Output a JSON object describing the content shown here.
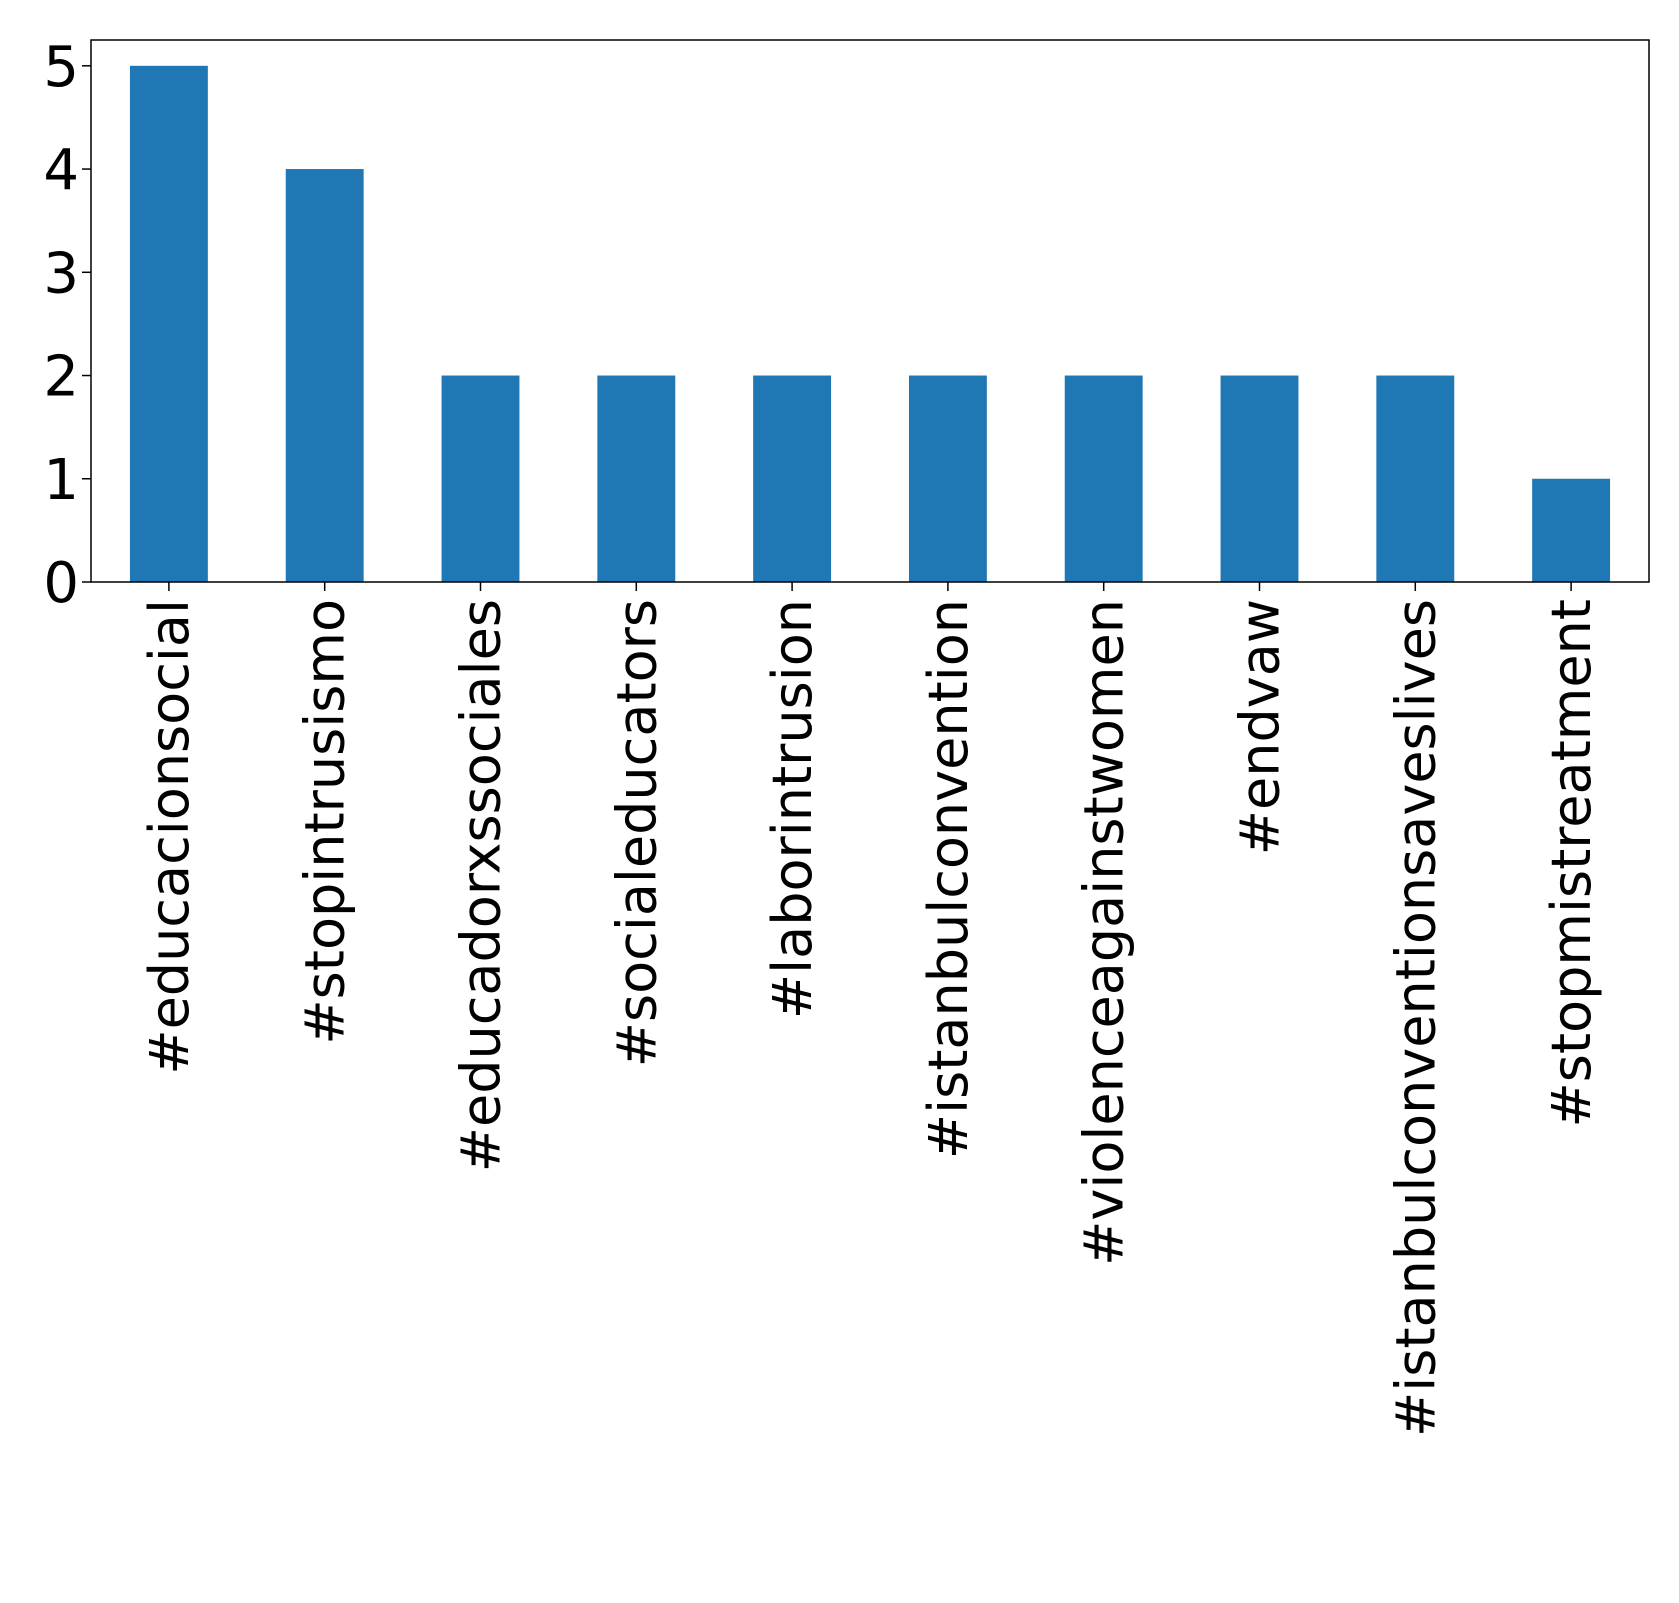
{
  "chart_data": {
    "type": "bar",
    "title": "",
    "xlabel": "",
    "ylabel": "",
    "ylim": [
      0,
      5.25
    ],
    "yticks": [
      0,
      1,
      2,
      3,
      4,
      5
    ],
    "categories": [
      "#educacionsocial",
      "#stopintrusismo",
      "#educadorxssociales",
      "#socialeducators",
      "#laborintrusion",
      "#istanbulconvention",
      "#violenceagainstwomen",
      "#endvaw",
      "#istanbulconventionsaveslives",
      "#stopmistreatment"
    ],
    "values": [
      5,
      4,
      2,
      2,
      2,
      2,
      2,
      2,
      2,
      1
    ],
    "bar_color": "#1f77b4",
    "grid": false,
    "legend": false
  }
}
